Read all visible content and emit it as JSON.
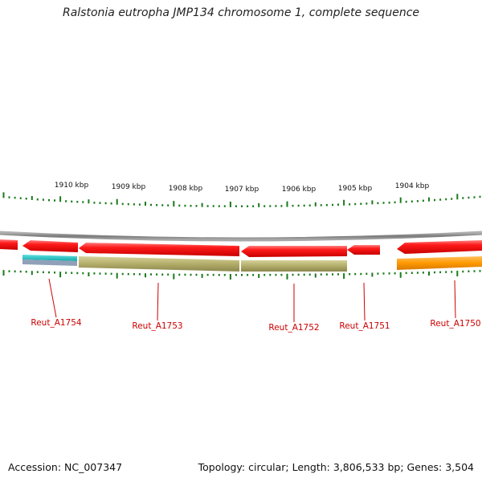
{
  "title": "Ralstonia eutropha JMP134 chromosome 1, complete sequence",
  "accession_line": "Accession: NC_007347",
  "summary_line": "Topology: circular; Length: 3,806,533 bp; Genes: 3,504",
  "colors": {
    "backbone": "#8a8a8a",
    "cds": "#ff1a1a",
    "label": "#cc0000",
    "tick": "#1a7a1a",
    "rna_cyan": "#22c8c8",
    "olive": "#b3ad6a",
    "orange": "#ff9900"
  },
  "scale_labels": [
    "1910 kbp",
    "1909 kbp",
    "1908 kbp",
    "1907 kbp",
    "1906 kbp",
    "1905 kbp",
    "1904 kbp"
  ],
  "gene_labels": [
    "Reut_A1754",
    "Reut_A1753",
    "Reut_A1752",
    "Reut_A1751",
    "Reut_A1750"
  ]
}
